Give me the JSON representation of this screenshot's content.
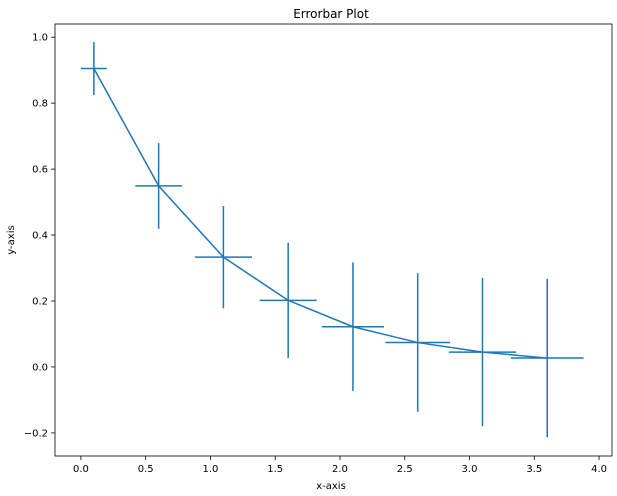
{
  "chart_data": {
    "type": "line",
    "title": "Errorbar Plot",
    "xlabel": "x-axis",
    "ylabel": "y-axis",
    "xlim": [
      -0.2,
      4.1
    ],
    "ylim": [
      -0.27,
      1.04
    ],
    "x_ticks": [
      0.0,
      0.5,
      1.0,
      1.5,
      2.0,
      2.5,
      3.0,
      3.5,
      4.0
    ],
    "x_tick_labels": [
      "0.0",
      "0.5",
      "1.0",
      "1.5",
      "2.0",
      "2.5",
      "3.0",
      "3.5",
      "4.0"
    ],
    "y_ticks": [
      -0.2,
      0.0,
      0.2,
      0.4,
      0.6,
      0.8,
      1.0
    ],
    "y_tick_labels": [
      "−0.2",
      "0.0",
      "0.2",
      "0.4",
      "0.6",
      "0.8",
      "1.0"
    ],
    "grid": false,
    "legend": false,
    "color": "#1f77b4",
    "series": [
      {
        "x": [
          0.1,
          0.6,
          1.1,
          1.6,
          2.1,
          2.6,
          3.1,
          3.6
        ],
        "y": [
          0.905,
          0.549,
          0.333,
          0.202,
          0.122,
          0.074,
          0.045,
          0.027
        ],
        "xerr": [
          0.1,
          0.18,
          0.22,
          0.22,
          0.24,
          0.25,
          0.26,
          0.28
        ],
        "yerr": [
          0.08,
          0.13,
          0.155,
          0.175,
          0.195,
          0.21,
          0.225,
          0.24
        ]
      }
    ]
  }
}
